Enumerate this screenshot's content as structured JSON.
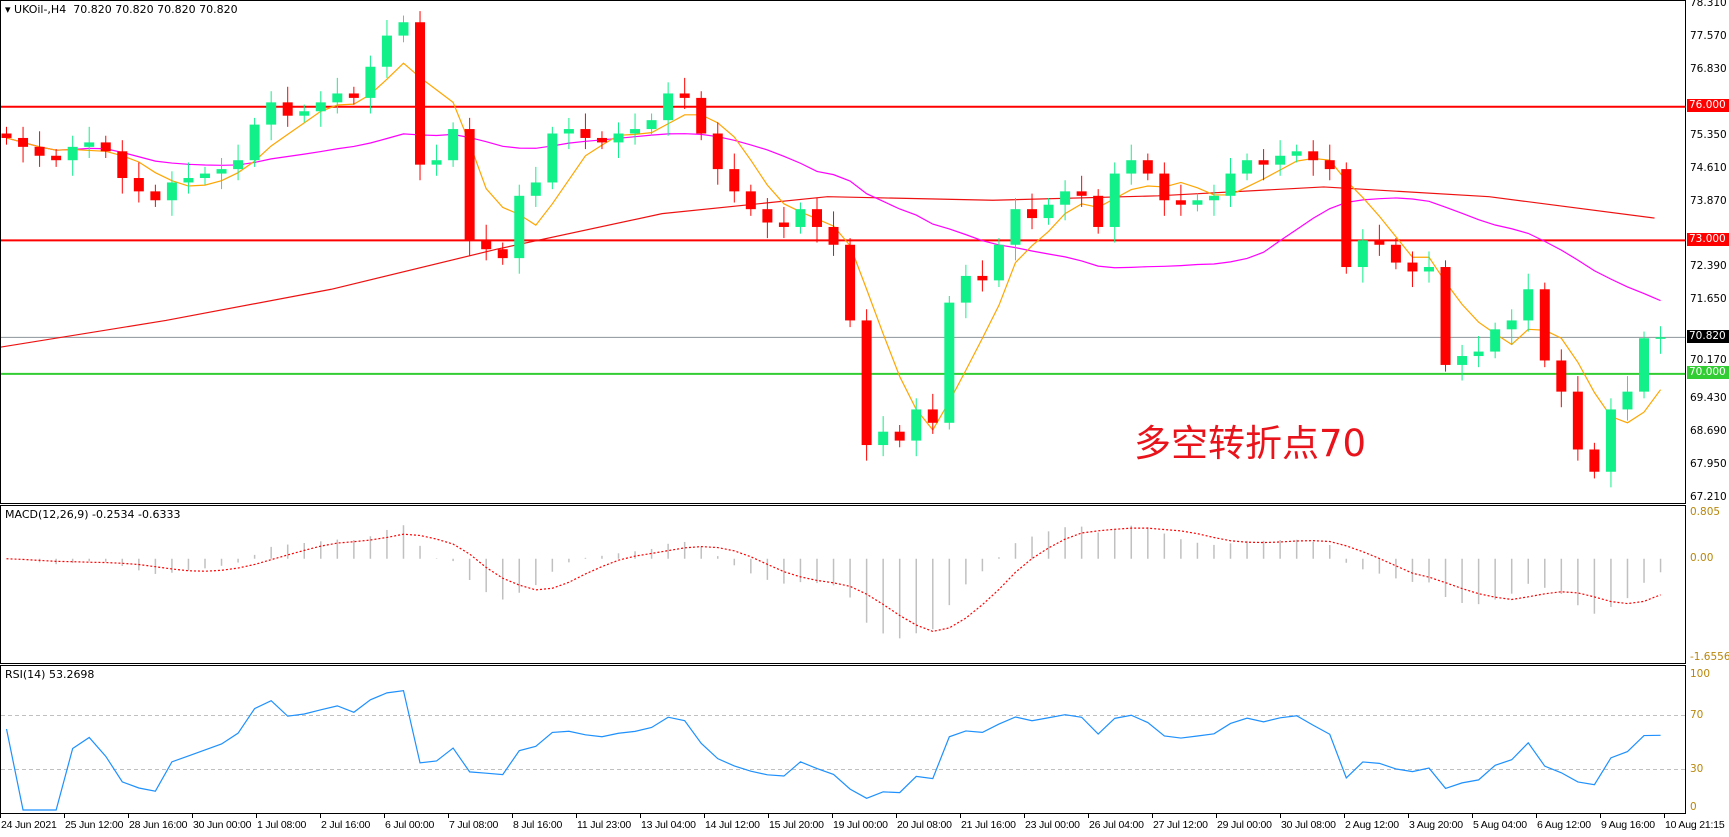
{
  "header": {
    "symbol_label": "UKOil-,H4",
    "ohlc_text": "70.820 70.820 70.820 70.820"
  },
  "annotation": "多空转折点70",
  "chart_data": [
    {
      "type": "candlestick",
      "title": "UKOil-,H4",
      "ylim": [
        67.21,
        78.31
      ],
      "y_ticks": [
        "78.310",
        "77.570",
        "76.830",
        "75.350",
        "74.610",
        "73.870",
        "72.390",
        "71.650",
        "70.170",
        "69.430",
        "68.690",
        "67.950",
        "67.210"
      ],
      "x_ticks": [
        "24 Jun 2021",
        "25 Jun 12:00",
        "28 Jun 16:00",
        "30 Jun 00:00",
        "1 Jul 08:00",
        "2 Jul 16:00",
        "6 Jul 00:00",
        "7 Jul 08:00",
        "8 Jul 16:00",
        "11 Jul 23:00",
        "13 Jul 04:00",
        "14 Jul 12:00",
        "15 Jul 20:00",
        "19 Jul 00:00",
        "20 Jul 08:00",
        "21 Jul 16:00",
        "23 Jul 00:00",
        "26 Jul 04:00",
        "27 Jul 12:00",
        "29 Jul 00:00",
        "30 Jul 08:00",
        "2 Aug 12:00",
        "3 Aug 20:00",
        "5 Aug 04:00",
        "6 Aug 12:00",
        "9 Aug 16:00",
        "10 Aug 21:15"
      ],
      "closes": [
        75.3,
        75.1,
        74.9,
        74.8,
        75.1,
        75.2,
        75.0,
        74.4,
        74.1,
        73.9,
        74.3,
        74.4,
        74.5,
        74.6,
        74.8,
        75.6,
        76.1,
        75.8,
        75.9,
        76.1,
        76.3,
        76.2,
        76.9,
        77.6,
        77.9,
        74.7,
        74.8,
        75.5,
        73.0,
        72.8,
        72.6,
        74.0,
        74.3,
        75.4,
        75.5,
        75.3,
        75.2,
        75.4,
        75.5,
        75.7,
        76.3,
        76.2,
        75.4,
        74.6,
        74.1,
        73.7,
        73.4,
        73.3,
        73.7,
        73.3,
        72.9,
        71.2,
        68.4,
        68.7,
        68.5,
        69.2,
        68.9,
        71.6,
        72.2,
        72.1,
        72.9,
        73.7,
        73.5,
        73.8,
        74.1,
        74.0,
        73.3,
        74.5,
        74.8,
        74.5,
        73.9,
        73.8,
        73.9,
        74.0,
        74.5,
        74.8,
        74.7,
        74.9,
        75.0,
        74.8,
        74.6,
        72.4,
        73.0,
        72.9,
        72.5,
        72.3,
        72.4,
        70.2,
        70.4,
        70.5,
        71.0,
        71.2,
        71.9,
        70.3,
        69.6,
        68.3,
        67.8,
        69.2,
        69.6,
        70.8,
        70.82
      ],
      "slow_ma": [
        70.6,
        71.2,
        71.9,
        72.8,
        73.6,
        73.98,
        73.9,
        74.0,
        74.2,
        73.98,
        73.5
      ],
      "levels": [
        {
          "price": "76.000",
          "color": "#ff0000"
        },
        {
          "price": "73.000",
          "color": "#ff0000"
        },
        {
          "price": "70.820",
          "color": "#8c949c",
          "tag_color": "#000000"
        },
        {
          "price": "70.000",
          "color": "#32cd32"
        }
      ],
      "colors": {
        "bull": "#12f08a",
        "bear": "#ff0000",
        "fast_ma": "#ffa500",
        "mid_ma": "#ff00ff",
        "slow_ma": "#ee1111"
      }
    },
    {
      "type": "bar",
      "title": "MACD(12,26,9) -0.2534 -0.6333",
      "ylim": [
        -1.6556,
        0.805
      ],
      "y_ticks": [
        "0.805",
        "0.00",
        "-1.6556"
      ],
      "colors": {
        "histogram": "#c0c0c0",
        "signal": "#ff0000"
      }
    },
    {
      "type": "line",
      "title": "RSI(14) 53.2698",
      "ylim": [
        0,
        100
      ],
      "y_ticks": [
        "100",
        "70",
        "30",
        "0"
      ],
      "levels": [
        70,
        30
      ],
      "colors": {
        "line": "#1e90ff"
      }
    }
  ]
}
